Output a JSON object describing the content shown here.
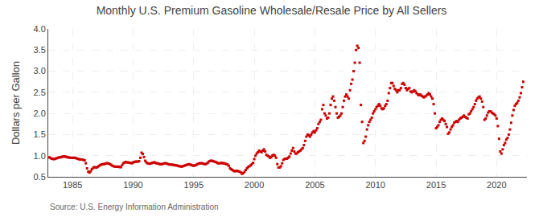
{
  "chart_data": {
    "type": "scatter",
    "title": "Monthly U.S. Premium Gasoline Wholesale/Resale Price by All Sellers",
    "ylabel": "Dollars per Gallon",
    "annotations": [
      "Source: U.S. Energy Information Administration"
    ],
    "color": "#cc0000",
    "marker": "square",
    "grid": true,
    "xlim": [
      1983.0,
      2022.5
    ],
    "ylim": [
      0.5,
      4.0
    ],
    "xticks": [
      1985,
      1990,
      1995,
      2000,
      2005,
      2010,
      2015,
      2020
    ],
    "yticks": [
      0.5,
      {
        "value": 1.0,
        "label": "1.0"
      },
      1.5,
      {
        "value": 2.0,
        "label": "2.0"
      },
      2.5,
      {
        "value": 3.0,
        "label": "3.0"
      },
      3.5,
      {
        "value": 4.0,
        "label": "4.0"
      }
    ],
    "x": [
      1983.1,
      1983.2,
      1983.3,
      1983.4,
      1983.5,
      1983.6,
      1983.7,
      1983.8,
      1983.9,
      1984.0,
      1984.1,
      1984.2,
      1984.3,
      1984.4,
      1984.5,
      1984.6,
      1984.7,
      1984.8,
      1984.9,
      1985.0,
      1985.1,
      1985.2,
      1985.3,
      1985.4,
      1985.5,
      1985.6,
      1985.7,
      1985.8,
      1985.9,
      1986.0,
      1986.1,
      1986.2,
      1986.3,
      1986.4,
      1986.5,
      1986.6,
      1986.7,
      1986.8,
      1986.9,
      1987.0,
      1987.1,
      1987.2,
      1987.3,
      1987.4,
      1987.5,
      1987.6,
      1987.7,
      1987.8,
      1987.9,
      1988.0,
      1988.1,
      1988.2,
      1988.3,
      1988.4,
      1988.5,
      1988.6,
      1988.7,
      1988.8,
      1988.9,
      1989.0,
      1989.1,
      1989.2,
      1989.3,
      1989.4,
      1989.5,
      1989.6,
      1989.7,
      1989.8,
      1989.9,
      1990.0,
      1990.1,
      1990.2,
      1990.3,
      1990.4,
      1990.5,
      1990.6,
      1990.7,
      1990.8,
      1990.9,
      1991.0,
      1991.1,
      1991.2,
      1991.3,
      1991.4,
      1991.5,
      1991.6,
      1991.7,
      1991.8,
      1991.9,
      1992.0,
      1992.1,
      1992.2,
      1992.3,
      1992.4,
      1992.5,
      1992.6,
      1992.7,
      1992.8,
      1992.9,
      1993.0,
      1993.1,
      1993.2,
      1993.3,
      1993.4,
      1993.5,
      1993.6,
      1993.7,
      1993.8,
      1993.9,
      1994.0,
      1994.1,
      1994.2,
      1994.3,
      1994.4,
      1994.5,
      1994.6,
      1994.7,
      1994.8,
      1994.9,
      1995.0,
      1995.1,
      1995.2,
      1995.3,
      1995.4,
      1995.5,
      1995.6,
      1995.7,
      1995.8,
      1995.9,
      1996.0,
      1996.1,
      1996.2,
      1996.3,
      1996.4,
      1996.5,
      1996.6,
      1996.7,
      1996.8,
      1996.9,
      1997.0,
      1997.1,
      1997.2,
      1997.3,
      1997.4,
      1997.5,
      1997.6,
      1997.7,
      1997.8,
      1997.9,
      1998.0,
      1998.1,
      1998.2,
      1998.3,
      1998.4,
      1998.5,
      1998.6,
      1998.7,
      1998.8,
      1998.9,
      1999.0,
      1999.1,
      1999.2,
      1999.3,
      1999.4,
      1999.5,
      1999.6,
      1999.7,
      1999.8,
      1999.9,
      2000.0,
      2000.1,
      2000.2,
      2000.3,
      2000.4,
      2000.5,
      2000.6,
      2000.7,
      2000.8,
      2000.9,
      2001.0,
      2001.1,
      2001.2,
      2001.3,
      2001.4,
      2001.5,
      2001.6,
      2001.7,
      2001.8,
      2001.9,
      2002.0,
      2002.1,
      2002.2,
      2002.3,
      2002.4,
      2002.5,
      2002.6,
      2002.7,
      2002.8,
      2002.9,
      2003.0,
      2003.1,
      2003.2,
      2003.3,
      2003.4,
      2003.5,
      2003.6,
      2003.7,
      2003.8,
      2003.9,
      2004.0,
      2004.1,
      2004.2,
      2004.3,
      2004.4,
      2004.5,
      2004.6,
      2004.7,
      2004.8,
      2004.9,
      2005.0,
      2005.1,
      2005.2,
      2005.3,
      2005.4,
      2005.5,
      2005.6,
      2005.7,
      2005.8,
      2005.9,
      2006.0,
      2006.1,
      2006.2,
      2006.3,
      2006.4,
      2006.5,
      2006.6,
      2006.7,
      2006.8,
      2006.9,
      2007.0,
      2007.1,
      2007.2,
      2007.3,
      2007.4,
      2007.5,
      2007.6,
      2007.7,
      2007.8,
      2007.9,
      2008.0,
      2008.1,
      2008.2,
      2008.3,
      2008.4,
      2008.5,
      2008.6,
      2008.7,
      2008.8,
      2008.9,
      2009.0,
      2009.1,
      2009.2,
      2009.3,
      2009.4,
      2009.5,
      2009.6,
      2009.7,
      2009.8,
      2009.9,
      2010.0,
      2010.1,
      2010.2,
      2010.3,
      2010.4,
      2010.5,
      2010.6,
      2010.7,
      2010.8,
      2010.9,
      2011.0,
      2011.1,
      2011.2,
      2011.3,
      2011.4,
      2011.5,
      2011.6,
      2011.7,
      2011.8,
      2011.9,
      2012.0,
      2012.1,
      2012.2,
      2012.3,
      2012.4,
      2012.5,
      2012.6,
      2012.7,
      2012.8,
      2012.9,
      2013.0,
      2013.1,
      2013.2,
      2013.3,
      2013.4,
      2013.5,
      2013.6,
      2013.7,
      2013.8,
      2013.9,
      2014.0,
      2014.1,
      2014.2,
      2014.3,
      2014.4,
      2014.5,
      2014.6,
      2014.7,
      2014.8,
      2014.9,
      2015.0,
      2015.1,
      2015.2,
      2015.3,
      2015.4,
      2015.5,
      2015.6,
      2015.7,
      2015.8,
      2015.9,
      2016.0,
      2016.1,
      2016.2,
      2016.3,
      2016.4,
      2016.5,
      2016.6,
      2016.7,
      2016.8,
      2016.9,
      2017.0,
      2017.1,
      2017.2,
      2017.3,
      2017.4,
      2017.5,
      2017.6,
      2017.7,
      2017.8,
      2017.9,
      2018.0,
      2018.1,
      2018.2,
      2018.3,
      2018.4,
      2018.5,
      2018.6,
      2018.7,
      2018.8,
      2018.9,
      2019.0,
      2019.1,
      2019.2,
      2019.3,
      2019.4,
      2019.5,
      2019.6,
      2019.7,
      2019.8,
      2019.9,
      2020.0,
      2020.1,
      2020.2,
      2020.3,
      2020.4,
      2020.5,
      2020.6,
      2020.7,
      2020.8,
      2020.9,
      2021.0,
      2021.1,
      2021.2,
      2021.3,
      2021.4,
      2021.5,
      2021.6,
      2021.7,
      2021.8,
      2021.9,
      2022.0,
      2022.1,
      2022.2
    ],
    "values": [
      0.96,
      0.94,
      0.93,
      0.92,
      0.92,
      0.93,
      0.94,
      0.95,
      0.96,
      0.96,
      0.97,
      0.98,
      0.98,
      0.98,
      0.97,
      0.96,
      0.96,
      0.95,
      0.95,
      0.95,
      0.95,
      0.95,
      0.94,
      0.93,
      0.92,
      0.91,
      0.91,
      0.91,
      0.9,
      0.89,
      0.82,
      0.7,
      0.62,
      0.6,
      0.63,
      0.68,
      0.71,
      0.73,
      0.72,
      0.72,
      0.74,
      0.76,
      0.78,
      0.79,
      0.8,
      0.8,
      0.81,
      0.82,
      0.82,
      0.81,
      0.8,
      0.78,
      0.76,
      0.75,
      0.74,
      0.74,
      0.74,
      0.74,
      0.73,
      0.73,
      0.78,
      0.82,
      0.84,
      0.85,
      0.84,
      0.84,
      0.83,
      0.83,
      0.82,
      0.84,
      0.85,
      0.86,
      0.86,
      0.86,
      0.87,
      0.95,
      1.07,
      1.04,
      0.97,
      0.88,
      0.84,
      0.82,
      0.81,
      0.81,
      0.82,
      0.83,
      0.84,
      0.84,
      0.82,
      0.82,
      0.81,
      0.8,
      0.8,
      0.8,
      0.81,
      0.82,
      0.82,
      0.81,
      0.8,
      0.79,
      0.79,
      0.79,
      0.78,
      0.78,
      0.77,
      0.77,
      0.76,
      0.75,
      0.75,
      0.74,
      0.75,
      0.76,
      0.77,
      0.78,
      0.79,
      0.8,
      0.79,
      0.78,
      0.77,
      0.76,
      0.77,
      0.78,
      0.8,
      0.81,
      0.82,
      0.82,
      0.82,
      0.81,
      0.8,
      0.8,
      0.82,
      0.84,
      0.87,
      0.88,
      0.88,
      0.87,
      0.86,
      0.85,
      0.84,
      0.82,
      0.82,
      0.82,
      0.83,
      0.82,
      0.82,
      0.81,
      0.8,
      0.79,
      0.76,
      0.7,
      0.68,
      0.66,
      0.64,
      0.63,
      0.64,
      0.64,
      0.63,
      0.62,
      0.6,
      0.57,
      0.59,
      0.62,
      0.66,
      0.7,
      0.73,
      0.75,
      0.77,
      0.8,
      0.83,
      0.92,
      1.0,
      1.05,
      1.08,
      1.12,
      1.1,
      1.08,
      1.12,
      1.15,
      1.1,
      1.02,
      1.0,
      0.98,
      0.95,
      0.97,
      1.0,
      1.02,
      1.0,
      0.95,
      0.8,
      0.72,
      0.72,
      0.75,
      0.82,
      0.9,
      0.92,
      0.93,
      0.93,
      0.95,
      0.98,
      1.05,
      1.12,
      1.18,
      1.1,
      1.05,
      1.05,
      1.08,
      1.1,
      1.12,
      1.15,
      1.18,
      1.25,
      1.35,
      1.45,
      1.5,
      1.48,
      1.45,
      1.5,
      1.55,
      1.58,
      1.55,
      1.6,
      1.65,
      1.75,
      1.8,
      1.85,
      2.1,
      2.2,
      2.0,
      1.95,
      1.88,
      1.9,
      2.0,
      2.2,
      2.35,
      2.4,
      2.3,
      2.15,
      2.0,
      1.9,
      1.92,
      1.95,
      2.0,
      2.15,
      2.3,
      2.4,
      2.45,
      2.4,
      2.35,
      2.55,
      2.7,
      2.8,
      3.0,
      3.2,
      3.5,
      3.6,
      3.55,
      3.2,
      2.2,
      1.8,
      1.3,
      1.35,
      1.45,
      1.62,
      1.72,
      1.8,
      1.85,
      1.9,
      2.0,
      2.05,
      2.1,
      2.15,
      2.18,
      2.22,
      2.18,
      2.12,
      2.1,
      2.12,
      2.18,
      2.22,
      2.3,
      2.48,
      2.6,
      2.72,
      2.72,
      2.65,
      2.58,
      2.55,
      2.5,
      2.55,
      2.55,
      2.6,
      2.7,
      2.72,
      2.68,
      2.6,
      2.55,
      2.58,
      2.6,
      2.52,
      2.5,
      2.52,
      2.55,
      2.52,
      2.48,
      2.45,
      2.43,
      2.45,
      2.42,
      2.4,
      2.38,
      2.4,
      2.42,
      2.45,
      2.48,
      2.45,
      2.4,
      2.35,
      2.22,
      2.0,
      1.65,
      1.68,
      1.72,
      1.8,
      1.85,
      1.88,
      1.85,
      1.82,
      1.75,
      1.68,
      1.52,
      1.55,
      1.62,
      1.68,
      1.72,
      1.78,
      1.8,
      1.82,
      1.8,
      1.85,
      1.88,
      1.9,
      1.92,
      1.95,
      1.92,
      1.9,
      1.88,
      1.98,
      2.0,
      2.05,
      2.1,
      2.15,
      2.22,
      2.3,
      2.35,
      2.38,
      2.4,
      2.35,
      2.28,
      2.15,
      1.85,
      1.88,
      1.95,
      2.02,
      2.05,
      2.05,
      2.02,
      2.0,
      1.98,
      1.95,
      1.88,
      1.7,
      1.4,
      1.1,
      1.05,
      1.15,
      1.25,
      1.3,
      1.38,
      1.42,
      1.5,
      1.62,
      1.78,
      1.95,
      2.08,
      2.18,
      2.22,
      2.25,
      2.3,
      2.38,
      2.48,
      2.62,
      2.75
    ]
  }
}
